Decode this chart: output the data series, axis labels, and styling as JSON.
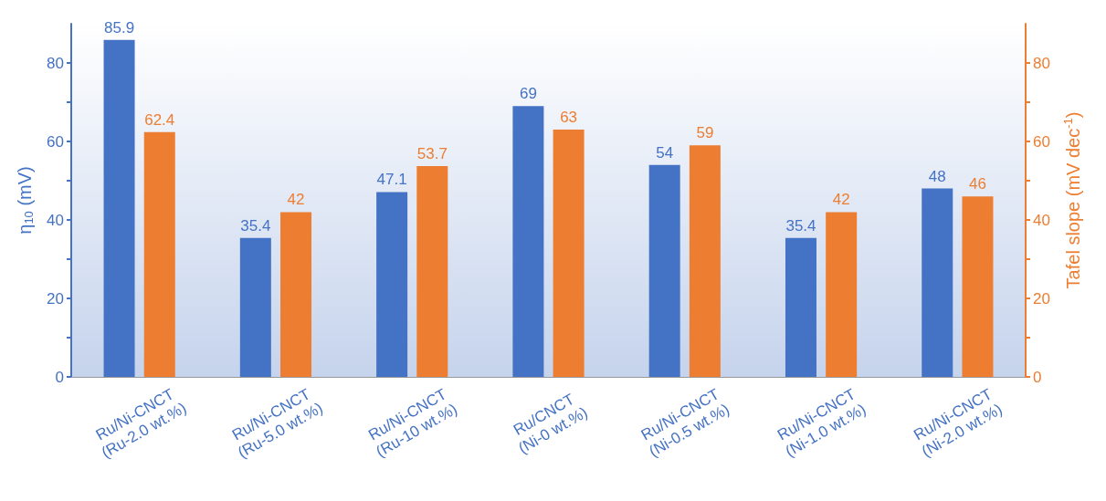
{
  "chart_data": {
    "type": "bar",
    "ylabel": "η$_{10}$ (mV)",
    "y2label": "Tafel slope (mV dec$^{-1}$)",
    "categories": [
      "Ru/Ni-CNCT\n(Ru-2.0 wt.%)",
      "Ru/Ni-CNCT\n(Ru-5.0 wt.%)",
      "Ru/Ni-CNCT\n(Ru-10 wt.%)",
      "Ru/CNCT\n(Ni-0 wt.%)",
      "Ru/Ni-CNCT\n(Ni-0.5 wt.%)",
      "Ru/Ni-CNCT\n(Ni-1.0 wt.%)",
      "Ru/Ni-CNCT\n(Ni-2.0 wt.%)"
    ],
    "series": [
      {
        "color": "#4472c4",
        "values": [
          85.9,
          35.4,
          47.1,
          69,
          54,
          35.4,
          48
        ]
      },
      {
        "color": "#ed7d31",
        "axis": "y2",
        "values": [
          62.4,
          42,
          53.7,
          63,
          59,
          42,
          46
        ]
      }
    ],
    "ylim": [
      0,
      90
    ],
    "yticks": [
      0,
      {
        "value": 10,
        "label": null
      },
      20,
      {
        "value": 30,
        "label": null
      },
      40,
      {
        "value": 50,
        "label": null
      },
      60,
      {
        "value": 70,
        "label": null
      },
      80
    ],
    "y2lim": [
      0,
      90
    ],
    "y2ticks": [
      0,
      {
        "value": 10,
        "label": null
      },
      20,
      {
        "value": 30,
        "label": null
      },
      40,
      {
        "value": 50,
        "label": null
      },
      60,
      {
        "value": 70,
        "label": null
      },
      80
    ],
    "data_labels": true,
    "grid": false
  }
}
